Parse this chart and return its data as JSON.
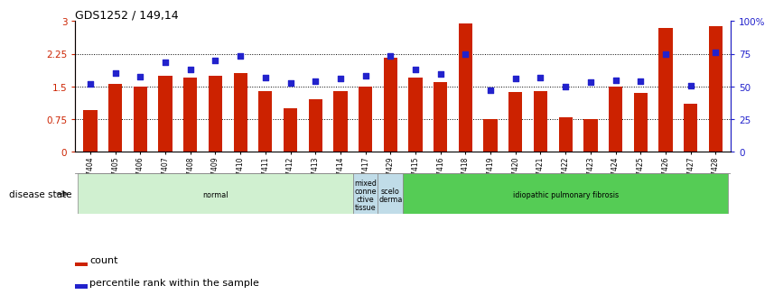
{
  "title": "GDS1252 / 149,14",
  "samples": [
    "GSM37404",
    "GSM37405",
    "GSM37406",
    "GSM37407",
    "GSM37408",
    "GSM37409",
    "GSM37410",
    "GSM37411",
    "GSM37412",
    "GSM37413",
    "GSM37414",
    "GSM37417",
    "GSM37429",
    "GSM37415",
    "GSM37416",
    "GSM37418",
    "GSM37419",
    "GSM37420",
    "GSM37421",
    "GSM37422",
    "GSM37423",
    "GSM37424",
    "GSM37425",
    "GSM37426",
    "GSM37427",
    "GSM37428"
  ],
  "bar_values": [
    0.95,
    1.55,
    1.5,
    1.75,
    1.7,
    1.75,
    1.8,
    1.4,
    1.0,
    1.2,
    1.4,
    1.5,
    2.15,
    1.7,
    1.6,
    2.95,
    0.75,
    1.38,
    1.4,
    0.8,
    0.75,
    1.5,
    1.35,
    2.85,
    1.1,
    2.88
  ],
  "dot_values": [
    1.55,
    1.8,
    1.73,
    2.05,
    1.9,
    2.1,
    2.2,
    1.7,
    1.58,
    1.62,
    1.68,
    1.75,
    2.2,
    1.9,
    1.78,
    2.25,
    1.42,
    1.68,
    1.7,
    1.5,
    1.6,
    1.65,
    1.62,
    2.25,
    1.52,
    2.28
  ],
  "ylim_left": [
    0,
    3
  ],
  "ylim_right": [
    0,
    100
  ],
  "yticks_left": [
    0,
    0.75,
    1.5,
    2.25,
    3
  ],
  "yticks_right": [
    0,
    25,
    50,
    75,
    100
  ],
  "ytick_labels_left": [
    "0",
    "0.75",
    "1.5",
    "2.25",
    "3"
  ],
  "ytick_labels_right": [
    "0",
    "25",
    "50",
    "75",
    "100%"
  ],
  "bar_color": "#cc2200",
  "dot_color": "#2222cc",
  "hline_values": [
    0.75,
    1.5,
    2.25
  ],
  "disease_groups": [
    {
      "label": "normal",
      "start": 0,
      "end": 11,
      "color": "#d0f0d0"
    },
    {
      "label": "mixed\nconne\nctive\ntissue",
      "start": 11,
      "end": 12,
      "color": "#c0dce8"
    },
    {
      "label": "scelo\nderma",
      "start": 12,
      "end": 13,
      "color": "#c0dce8"
    },
    {
      "label": "idiopathic pulmonary fibrosis",
      "start": 13,
      "end": 26,
      "color": "#55cc55"
    }
  ],
  "disease_state_label": "disease state",
  "count_label": "count",
  "pct_label": "percentile rank within the sample"
}
